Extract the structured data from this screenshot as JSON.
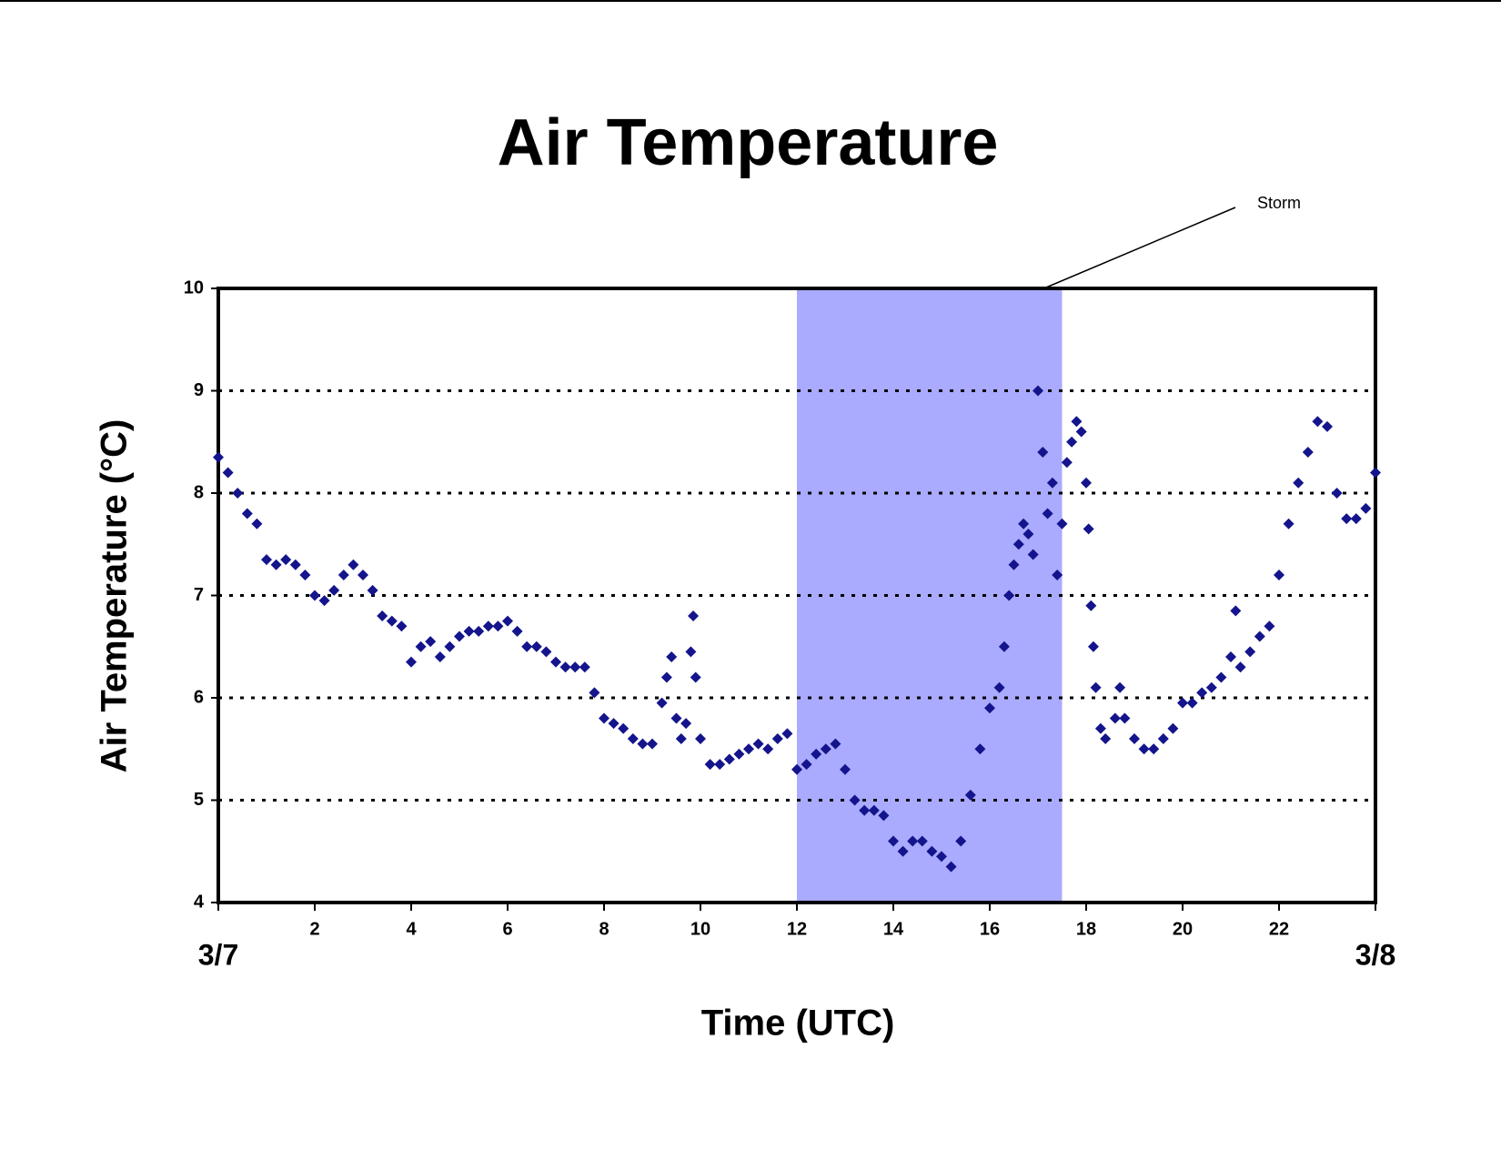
{
  "chart_data": {
    "type": "scatter",
    "title": "Air Temperature",
    "x_label": "Time (UTC)",
    "y_label": "Air Temperature (°C)",
    "annotations": [
      {
        "text": "Storm"
      }
    ],
    "shaded_region": {
      "x": [
        12,
        17.5
      ],
      "color": "#aaaaff"
    },
    "color": "#14148c",
    "xlim": [
      0,
      24
    ],
    "ylim": [
      4,
      10
    ],
    "xticks": [
      {
        "value": 0,
        "label": "3/7"
      },
      2,
      4,
      6,
      8,
      10,
      12,
      14,
      16,
      18,
      20,
      22,
      {
        "value": 24,
        "label": "3/8"
      }
    ],
    "yticks": [
      4,
      5,
      6,
      7,
      8,
      9,
      10
    ],
    "grid": true,
    "x": [
      0,
      0.2,
      0.4,
      0.6,
      0.8,
      1.0,
      1.2,
      1.4,
      1.6,
      1.8,
      2.0,
      2.2,
      2.4,
      2.6,
      2.8,
      3.0,
      3.2,
      3.4,
      3.6,
      3.8,
      4.0,
      4.2,
      4.4,
      4.6,
      4.8,
      5.0,
      5.2,
      5.4,
      5.6,
      5.8,
      6.0,
      6.2,
      6.4,
      6.6,
      6.8,
      7.0,
      7.2,
      7.4,
      7.6,
      7.8,
      8.0,
      8.2,
      8.4,
      8.6,
      8.8,
      9.0,
      9.2,
      9.3,
      9.4,
      9.5,
      9.6,
      9.7,
      9.8,
      9.85,
      9.9,
      10.0,
      10.2,
      10.4,
      10.6,
      10.8,
      11.0,
      11.2,
      11.4,
      11.6,
      11.8,
      12.0,
      12.2,
      12.4,
      12.6,
      12.8,
      13.0,
      13.2,
      13.4,
      13.6,
      13.8,
      14.0,
      14.2,
      14.4,
      14.6,
      14.8,
      15.0,
      15.2,
      15.4,
      15.6,
      15.8,
      16.0,
      16.2,
      16.3,
      16.4,
      16.5,
      16.6,
      16.7,
      16.8,
      16.9,
      17.0,
      17.1,
      17.2,
      17.3,
      17.4,
      17.5,
      17.6,
      17.7,
      17.8,
      17.9,
      18.0,
      18.05,
      18.1,
      18.15,
      18.2,
      18.3,
      18.4,
      18.6,
      18.7,
      18.8,
      19.0,
      19.2,
      19.4,
      19.6,
      19.8,
      20.0,
      20.2,
      20.4,
      20.6,
      20.8,
      21.0,
      21.1,
      21.2,
      21.4,
      21.6,
      21.8,
      22.0,
      22.2,
      22.4,
      22.6,
      22.8,
      23.0,
      23.2,
      23.4,
      23.6,
      23.8,
      24.0
    ],
    "values": [
      8.35,
      8.2,
      8.0,
      7.8,
      7.7,
      7.35,
      7.3,
      7.35,
      7.3,
      7.2,
      7.0,
      6.95,
      7.05,
      7.2,
      7.3,
      7.2,
      7.05,
      6.8,
      6.75,
      6.7,
      6.35,
      6.5,
      6.55,
      6.4,
      6.5,
      6.6,
      6.65,
      6.65,
      6.7,
      6.7,
      6.75,
      6.65,
      6.5,
      6.5,
      6.45,
      6.35,
      6.3,
      6.3,
      6.3,
      6.05,
      5.8,
      5.75,
      5.7,
      5.6,
      5.55,
      5.55,
      5.95,
      6.2,
      6.4,
      5.8,
      5.6,
      5.75,
      6.45,
      6.8,
      6.2,
      5.6,
      5.35,
      5.35,
      5.4,
      5.45,
      5.5,
      5.55,
      5.5,
      5.6,
      5.65,
      5.3,
      5.35,
      5.45,
      5.5,
      5.55,
      5.3,
      5.0,
      4.9,
      4.9,
      4.85,
      4.6,
      4.5,
      4.6,
      4.6,
      4.5,
      4.45,
      4.35,
      4.6,
      5.05,
      5.5,
      5.9,
      6.1,
      6.5,
      7.0,
      7.3,
      7.5,
      7.7,
      7.6,
      7.4,
      9.0,
      8.4,
      7.8,
      8.1,
      7.2,
      7.7,
      8.3,
      8.5,
      8.7,
      8.6,
      8.1,
      7.65,
      6.9,
      6.5,
      6.1,
      5.7,
      5.6,
      5.8,
      6.1,
      5.8,
      5.6,
      5.5,
      5.5,
      5.6,
      5.7,
      5.95,
      5.95,
      6.05,
      6.1,
      6.2,
      6.4,
      6.85,
      6.3,
      6.45,
      6.6,
      6.7,
      7.2,
      7.7,
      8.1,
      8.4,
      8.7,
      8.65,
      8.0,
      7.75,
      7.75,
      7.85,
      8.2
    ]
  }
}
